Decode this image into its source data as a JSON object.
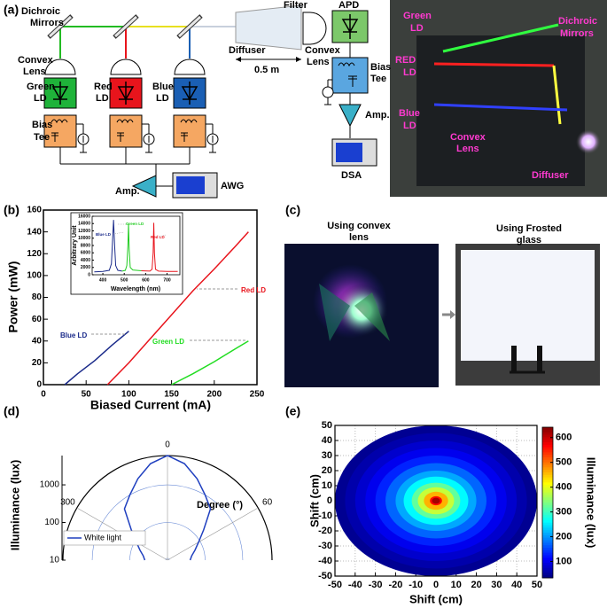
{
  "panels": {
    "a": {
      "label": "(a)",
      "mirrors": [
        "Dichroic",
        "Mirrors"
      ],
      "lens": [
        "Convex",
        "Lens"
      ],
      "lds": [
        [
          "Green",
          "LD"
        ],
        [
          "Red",
          "LD"
        ],
        [
          "Blue",
          "LD"
        ]
      ],
      "bias_tee": [
        "Bias",
        "Tee"
      ],
      "amp": "Amp.",
      "awg": "AWG",
      "filter": "Filter",
      "apd": "APD",
      "diffuser": "Diffuser",
      "rx_lens": [
        "Convex",
        "Lens"
      ],
      "distance": "0.5 m",
      "rx_bias_tee": [
        "Bias",
        "Tee"
      ],
      "rx_amp": "Amp.",
      "dsa": "DSA",
      "photo_labels": [
        [
          "Green",
          "LD"
        ],
        [
          "RED",
          "LD"
        ],
        [
          "Blue",
          "LD"
        ],
        [
          "Dichroic",
          "Mirrors"
        ],
        [
          "Convex",
          "Lens"
        ],
        [
          "Diffuser"
        ]
      ]
    },
    "b": {
      "label": "(b)"
    },
    "c": {
      "label": "(c)",
      "left_title": [
        "Using convex",
        "lens"
      ],
      "right_title": [
        "Using Frosted",
        "glass"
      ]
    },
    "d": {
      "label": "(d)"
    },
    "e": {
      "label": "(e)"
    }
  },
  "chart_data": [
    {
      "type": "line",
      "xlabel": "Biased Current (mA)",
      "ylabel": "Power (mW)",
      "xlim": [
        0,
        250
      ],
      "xticks": [
        0,
        50,
        100,
        150,
        200,
        250
      ],
      "ylim": [
        0,
        160
      ],
      "yticks": [
        0,
        20,
        40,
        60,
        80,
        100,
        120,
        140,
        160
      ],
      "series": [
        {
          "name": "Blue LD",
          "color": "#1a2a8a",
          "x": [
            25,
            40,
            60,
            80,
            100
          ],
          "values": [
            0,
            10,
            22,
            36,
            49
          ]
        },
        {
          "name": "Red LD",
          "color": "#e8141c",
          "x": [
            75,
            100,
            125,
            150,
            175,
            200,
            225,
            240
          ],
          "values": [
            0,
            20,
            42,
            64,
            86,
            106,
            127,
            140
          ]
        },
        {
          "name": "Green LD",
          "color": "#22dd22",
          "x": [
            150,
            175,
            200,
            225,
            240
          ],
          "values": [
            0,
            10,
            21,
            33,
            40
          ]
        }
      ]
    },
    {
      "type": "line",
      "xlabel": "Wavelength (nm)",
      "ylabel": "Arbitrary Unit",
      "xlim": [
        350,
        760
      ],
      "xticks": [
        400,
        500,
        600,
        700
      ],
      "ylim": [
        0,
        16000
      ],
      "yticks": [
        0,
        2000,
        4000,
        6000,
        8000,
        10000,
        12000,
        14000,
        16000
      ],
      "series": [
        {
          "name": "Blue LD",
          "color": "#1a2a8a",
          "x": [
            360,
            400,
            430,
            440,
            445,
            450,
            455,
            460,
            470,
            490
          ],
          "values": [
            800,
            900,
            1200,
            3000,
            9000,
            15000,
            8000,
            2500,
            1200,
            1000
          ]
        },
        {
          "name": "Green LD",
          "color": "#22cc22",
          "x": [
            490,
            505,
            512,
            517,
            520,
            523,
            528,
            540,
            580
          ],
          "values": [
            1000,
            1200,
            2500,
            8000,
            14000,
            7000,
            2000,
            1300,
            1100
          ]
        },
        {
          "name": "Red LD",
          "color": "#e8141c",
          "x": [
            580,
            620,
            630,
            635,
            638,
            641,
            646,
            660,
            700,
            750
          ],
          "values": [
            1100,
            1000,
            1500,
            6000,
            14200,
            6000,
            1500,
            1000,
            900,
            900
          ]
        }
      ]
    },
    {
      "type": "polar",
      "ylabel": "Illuminance (lux)",
      "rlog": true,
      "rlim": [
        10,
        6000
      ],
      "rticks": [
        10,
        100,
        1000
      ],
      "theta_ticks": [
        0,
        300,
        60
      ],
      "theta_label": "Degree (°)",
      "series": [
        {
          "name": "White light",
          "color": "#1f3fbf",
          "theta": [
            270,
            280,
            290,
            300,
            310,
            320,
            330,
            340,
            350,
            0,
            10,
            20,
            30,
            40,
            50,
            60,
            70,
            80,
            90
          ],
          "values": [
            40,
            45,
            60,
            90,
            180,
            600,
            1000,
            2000,
            4000,
            6000,
            4000,
            2000,
            1000,
            600,
            180,
            90,
            60,
            45,
            40
          ]
        }
      ]
    },
    {
      "type": "contour",
      "xlabel": "Shift (cm)",
      "ylabel": "Shift (cm)",
      "colorbar_label": "Illuminance (lux)",
      "xlim": [
        -50,
        50
      ],
      "xticks": [
        -50,
        -40,
        -30,
        -20,
        -10,
        0,
        10,
        20,
        30,
        40,
        50
      ],
      "ylim": [
        -50,
        50
      ],
      "yticks": [
        -50,
        -40,
        -30,
        -20,
        -10,
        0,
        10,
        20,
        30,
        40,
        50
      ],
      "clim": [
        34,
        642
      ],
      "cticks": [
        100,
        200,
        300,
        400,
        500,
        600
      ],
      "colormap": "jet",
      "grid": true,
      "r": [
        50,
        45,
        40,
        35,
        30,
        25,
        20,
        16,
        12,
        9,
        6,
        3,
        2
      ],
      "values": [
        45,
        60,
        80,
        100,
        130,
        170,
        210,
        260,
        320,
        380,
        460,
        560,
        620
      ]
    }
  ]
}
